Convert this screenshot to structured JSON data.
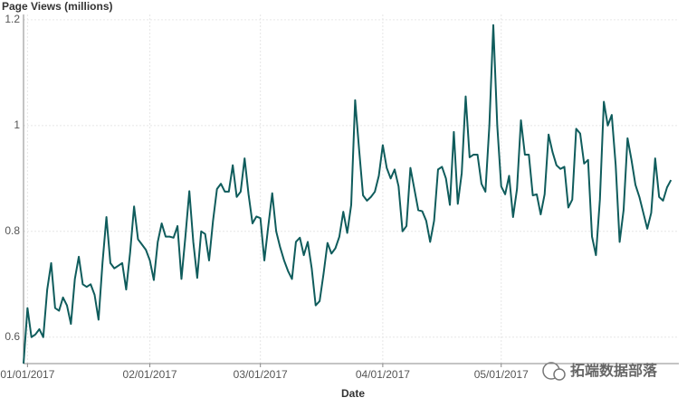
{
  "chart_data": {
    "type": "line",
    "title": "Page Views (millions)",
    "x_label": "Date",
    "watermark": "拓端数据部落",
    "xlim": [
      "2016-12-31",
      "2017-06-15"
    ],
    "xticks": [
      {
        "value": "2017-01-01",
        "label": "01/01/2017"
      },
      {
        "value": "2017-02-01",
        "label": "02/01/2017"
      },
      {
        "value": "2017-03-01",
        "label": "03/01/2017"
      },
      {
        "value": "2017-04-01",
        "label": "04/01/2017"
      },
      {
        "value": "2017-05-01",
        "label": "05/01/2017"
      }
    ],
    "ylim": [
      0.55,
      1.21
    ],
    "yticks": [
      0.6,
      0.8,
      1.0,
      1.2
    ],
    "grid": true,
    "x": [
      "2016-12-31",
      "2017-01-01",
      "2017-01-02",
      "2017-01-03",
      "2017-01-04",
      "2017-01-05",
      "2017-01-06",
      "2017-01-07",
      "2017-01-08",
      "2017-01-09",
      "2017-01-10",
      "2017-01-11",
      "2017-01-12",
      "2017-01-13",
      "2017-01-14",
      "2017-01-15",
      "2017-01-16",
      "2017-01-17",
      "2017-01-18",
      "2017-01-19",
      "2017-01-20",
      "2017-01-21",
      "2017-01-22",
      "2017-01-23",
      "2017-01-24",
      "2017-01-25",
      "2017-01-26",
      "2017-01-27",
      "2017-01-28",
      "2017-01-29",
      "2017-01-30",
      "2017-01-31",
      "2017-02-01",
      "2017-02-02",
      "2017-02-03",
      "2017-02-04",
      "2017-02-05",
      "2017-02-06",
      "2017-02-07",
      "2017-02-08",
      "2017-02-09",
      "2017-02-10",
      "2017-02-11",
      "2017-02-12",
      "2017-02-13",
      "2017-02-14",
      "2017-02-15",
      "2017-02-16",
      "2017-02-17",
      "2017-02-18",
      "2017-02-19",
      "2017-02-20",
      "2017-02-21",
      "2017-02-22",
      "2017-02-23",
      "2017-02-24",
      "2017-02-25",
      "2017-02-26",
      "2017-02-27",
      "2017-02-28",
      "2017-03-01",
      "2017-03-02",
      "2017-03-03",
      "2017-03-04",
      "2017-03-05",
      "2017-03-06",
      "2017-03-07",
      "2017-03-08",
      "2017-03-09",
      "2017-03-10",
      "2017-03-11",
      "2017-03-12",
      "2017-03-13",
      "2017-03-14",
      "2017-03-15",
      "2017-03-16",
      "2017-03-17",
      "2017-03-18",
      "2017-03-19",
      "2017-03-20",
      "2017-03-21",
      "2017-03-22",
      "2017-03-23",
      "2017-03-24",
      "2017-03-25",
      "2017-03-26",
      "2017-03-27",
      "2017-03-28",
      "2017-03-29",
      "2017-03-30",
      "2017-03-31",
      "2017-04-01",
      "2017-04-02",
      "2017-04-03",
      "2017-04-04",
      "2017-04-05",
      "2017-04-06",
      "2017-04-07",
      "2017-04-08",
      "2017-04-09",
      "2017-04-10",
      "2017-04-11",
      "2017-04-12",
      "2017-04-13",
      "2017-04-14",
      "2017-04-15",
      "2017-04-16",
      "2017-04-17",
      "2017-04-18",
      "2017-04-19",
      "2017-04-20",
      "2017-04-21",
      "2017-04-22",
      "2017-04-23",
      "2017-04-24",
      "2017-04-25",
      "2017-04-26",
      "2017-04-27",
      "2017-04-28",
      "2017-04-29",
      "2017-04-30",
      "2017-05-01",
      "2017-05-02",
      "2017-05-03",
      "2017-05-04",
      "2017-05-05",
      "2017-05-06",
      "2017-05-07",
      "2017-05-08",
      "2017-05-09",
      "2017-05-10",
      "2017-05-11",
      "2017-05-12",
      "2017-05-13",
      "2017-05-14",
      "2017-05-15",
      "2017-05-16",
      "2017-05-17",
      "2017-05-18",
      "2017-05-19",
      "2017-05-20",
      "2017-05-21",
      "2017-05-22",
      "2017-05-23",
      "2017-05-24",
      "2017-05-25",
      "2017-05-26",
      "2017-05-27",
      "2017-05-28",
      "2017-05-29",
      "2017-05-30",
      "2017-05-31",
      "2017-06-01",
      "2017-06-02",
      "2017-06-03",
      "2017-06-04",
      "2017-06-05",
      "2017-06-06",
      "2017-06-07",
      "2017-06-08",
      "2017-06-09",
      "2017-06-10",
      "2017-06-11",
      "2017-06-12",
      "2017-06-13"
    ],
    "series": [
      {
        "name": "Page Views",
        "color": "#0f5c5c",
        "values": [
          0.55,
          0.655,
          0.6,
          0.605,
          0.615,
          0.6,
          0.69,
          0.74,
          0.655,
          0.65,
          0.675,
          0.66,
          0.625,
          0.71,
          0.752,
          0.7,
          0.695,
          0.7,
          0.68,
          0.633,
          0.74,
          0.827,
          0.74,
          0.73,
          0.735,
          0.74,
          0.69,
          0.76,
          0.847,
          0.785,
          0.775,
          0.765,
          0.745,
          0.708,
          0.78,
          0.815,
          0.79,
          0.79,
          0.788,
          0.81,
          0.71,
          0.79,
          0.876,
          0.78,
          0.712,
          0.8,
          0.795,
          0.745,
          0.82,
          0.88,
          0.89,
          0.875,
          0.875,
          0.925,
          0.865,
          0.875,
          0.938,
          0.87,
          0.815,
          0.828,
          0.825,
          0.745,
          0.81,
          0.872,
          0.8,
          0.77,
          0.745,
          0.725,
          0.71,
          0.78,
          0.788,
          0.755,
          0.78,
          0.73,
          0.66,
          0.668,
          0.72,
          0.778,
          0.758,
          0.768,
          0.79,
          0.837,
          0.797,
          0.85,
          1.048,
          0.955,
          0.868,
          0.858,
          0.865,
          0.875,
          0.905,
          0.963,
          0.92,
          0.9,
          0.917,
          0.885,
          0.8,
          0.81,
          0.92,
          0.88,
          0.84,
          0.838,
          0.82,
          0.78,
          0.82,
          0.917,
          0.922,
          0.9,
          0.85,
          0.988,
          0.852,
          0.91,
          1.055,
          0.94,
          0.945,
          0.945,
          0.89,
          0.875,
          1.0,
          1.19,
          1.0,
          0.885,
          0.87,
          0.905,
          0.827,
          0.88,
          1.01,
          0.945,
          0.945,
          0.868,
          0.87,
          0.832,
          0.87,
          0.983,
          0.95,
          0.925,
          0.918,
          0.922,
          0.845,
          0.86,
          0.994,
          0.985,
          0.928,
          0.935,
          0.79,
          0.755,
          0.86,
          1.045,
          1.0,
          1.02,
          0.925,
          0.78,
          0.84,
          0.976,
          0.935,
          0.888,
          0.865,
          0.835,
          0.805,
          0.835,
          0.938,
          0.865,
          0.858,
          0.883,
          0.897
        ]
      }
    ]
  }
}
